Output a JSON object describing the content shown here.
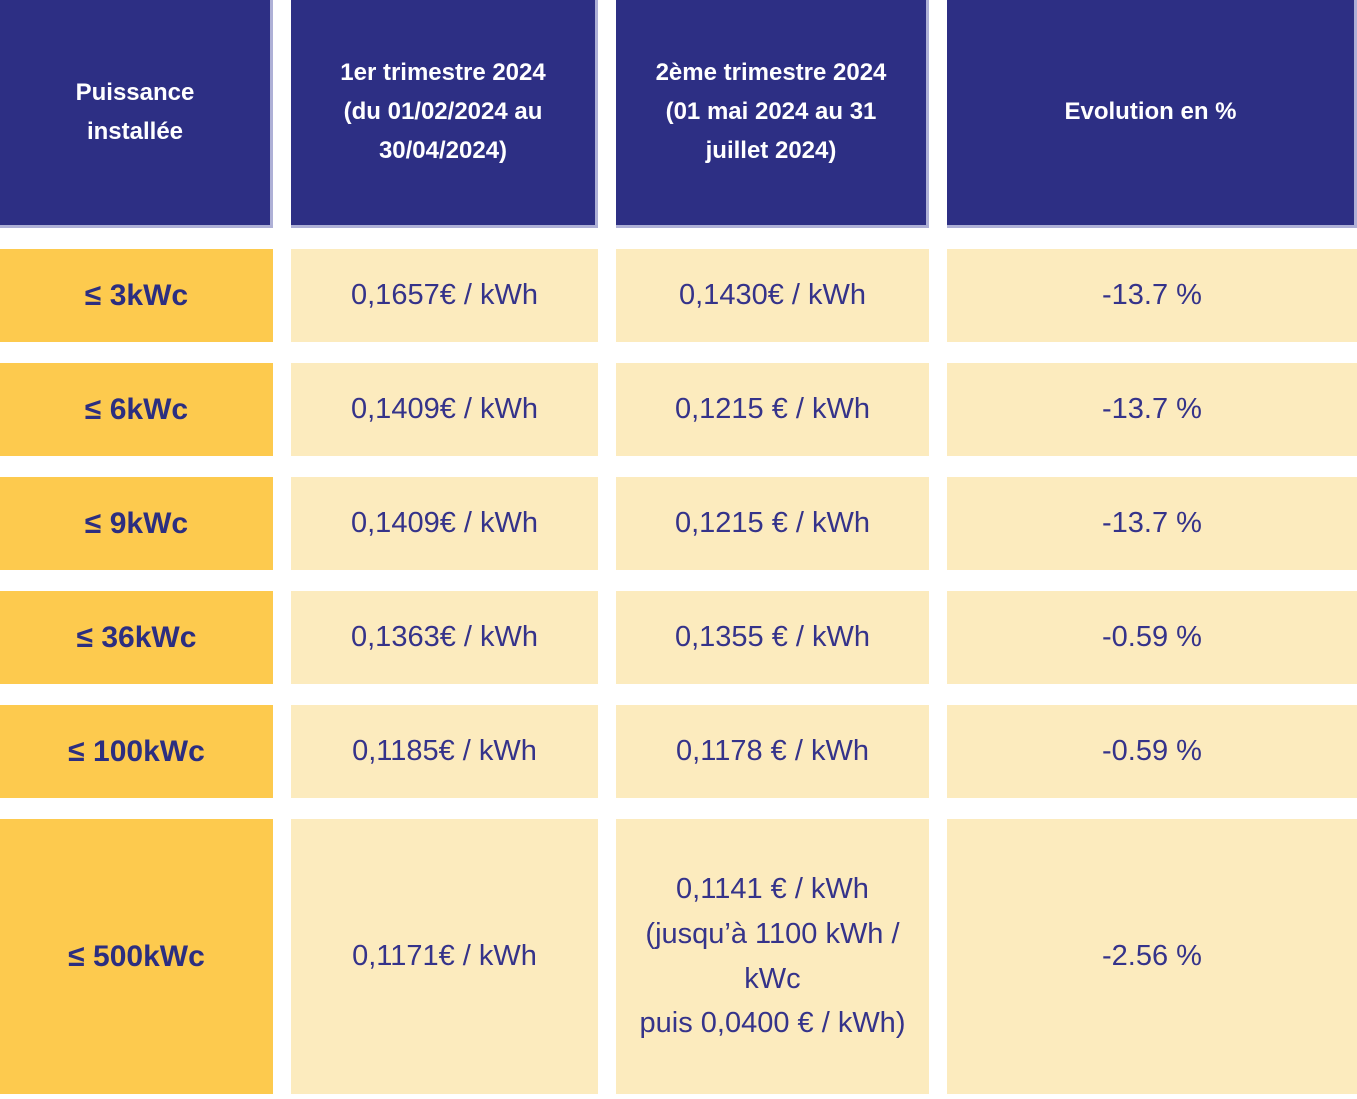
{
  "table": {
    "headers": [
      "Puissance installée",
      "1er trimestre 2024 (du 01/02/2024 au 30/04/2024)",
      "2ème trimestre 2024 (01 mai 2024 au 31 juillet 2024)",
      "Evolution en %"
    ],
    "rows": [
      {
        "label": "≤ 3kWc",
        "q1": "0,1657€ / kWh",
        "q2": "0,1430€ / kWh",
        "evolution": "-13.7 %"
      },
      {
        "label": "≤ 6kWc",
        "q1": "0,1409€ / kWh",
        "q2": "0,1215 € / kWh",
        "evolution": "-13.7 %"
      },
      {
        "label": "≤ 9kWc",
        "q1": "0,1409€ / kWh",
        "q2": "0,1215 € / kWh",
        "evolution": "-13.7 %"
      },
      {
        "label": "≤ 36kWc",
        "q1": "0,1363€ / kWh",
        "q2": "0,1355 € / kWh",
        "evolution": "-0.59 %"
      },
      {
        "label": "≤ 100kWc",
        "q1": "0,1185€ / kWh",
        "q2": "0,1178 € / kWh",
        "evolution": "-0.59 %"
      },
      {
        "label": "≤ 500kWc",
        "q1": "0,1171€ / kWh",
        "q2": "0,1141 € / kWh\n(jusqu’à 1100 kWh /\nkWc\npuis 0,0400 € / kWh)",
        "evolution": "-2.56 %"
      }
    ]
  },
  "colors": {
    "header_bg": "#2d2f84",
    "header_text": "#ffffff",
    "label_bg": "#fdca4e",
    "cell_bg": "#fcebbe",
    "text_indigo": "#35338a"
  },
  "chart_data": {
    "type": "table",
    "title": "Tarifs de rachat photovoltaïque 2024",
    "columns": [
      "Puissance installée",
      "1er trimestre 2024 (du 01/02/2024 au 30/04/2024)",
      "2ème trimestre 2024 (01 mai 2024 au 31 juillet 2024)",
      "Evolution en %"
    ],
    "rows": [
      [
        "≤ 3kWc",
        "0,1657€ / kWh",
        "0,1430€ / kWh",
        "-13.7 %"
      ],
      [
        "≤ 6kWc",
        "0,1409€ / kWh",
        "0,1215 € / kWh",
        "-13.7 %"
      ],
      [
        "≤ 9kWc",
        "0,1409€ / kWh",
        "0,1215 € / kWh",
        "-13.7 %"
      ],
      [
        "≤ 36kWc",
        "0,1363€ / kWh",
        "0,1355 € / kWh",
        "-0.59 %"
      ],
      [
        "≤ 100kWc",
        "0,1185€ / kWh",
        "0,1178 € / kWh",
        "-0.59 %"
      ],
      [
        "≤ 500kWc",
        "0,1171€ / kWh",
        "0,1141 € / kWh (jusqu’à 1100 kWh / kWc puis 0,0400 € / kWh)",
        "-2.56 %"
      ]
    ]
  }
}
